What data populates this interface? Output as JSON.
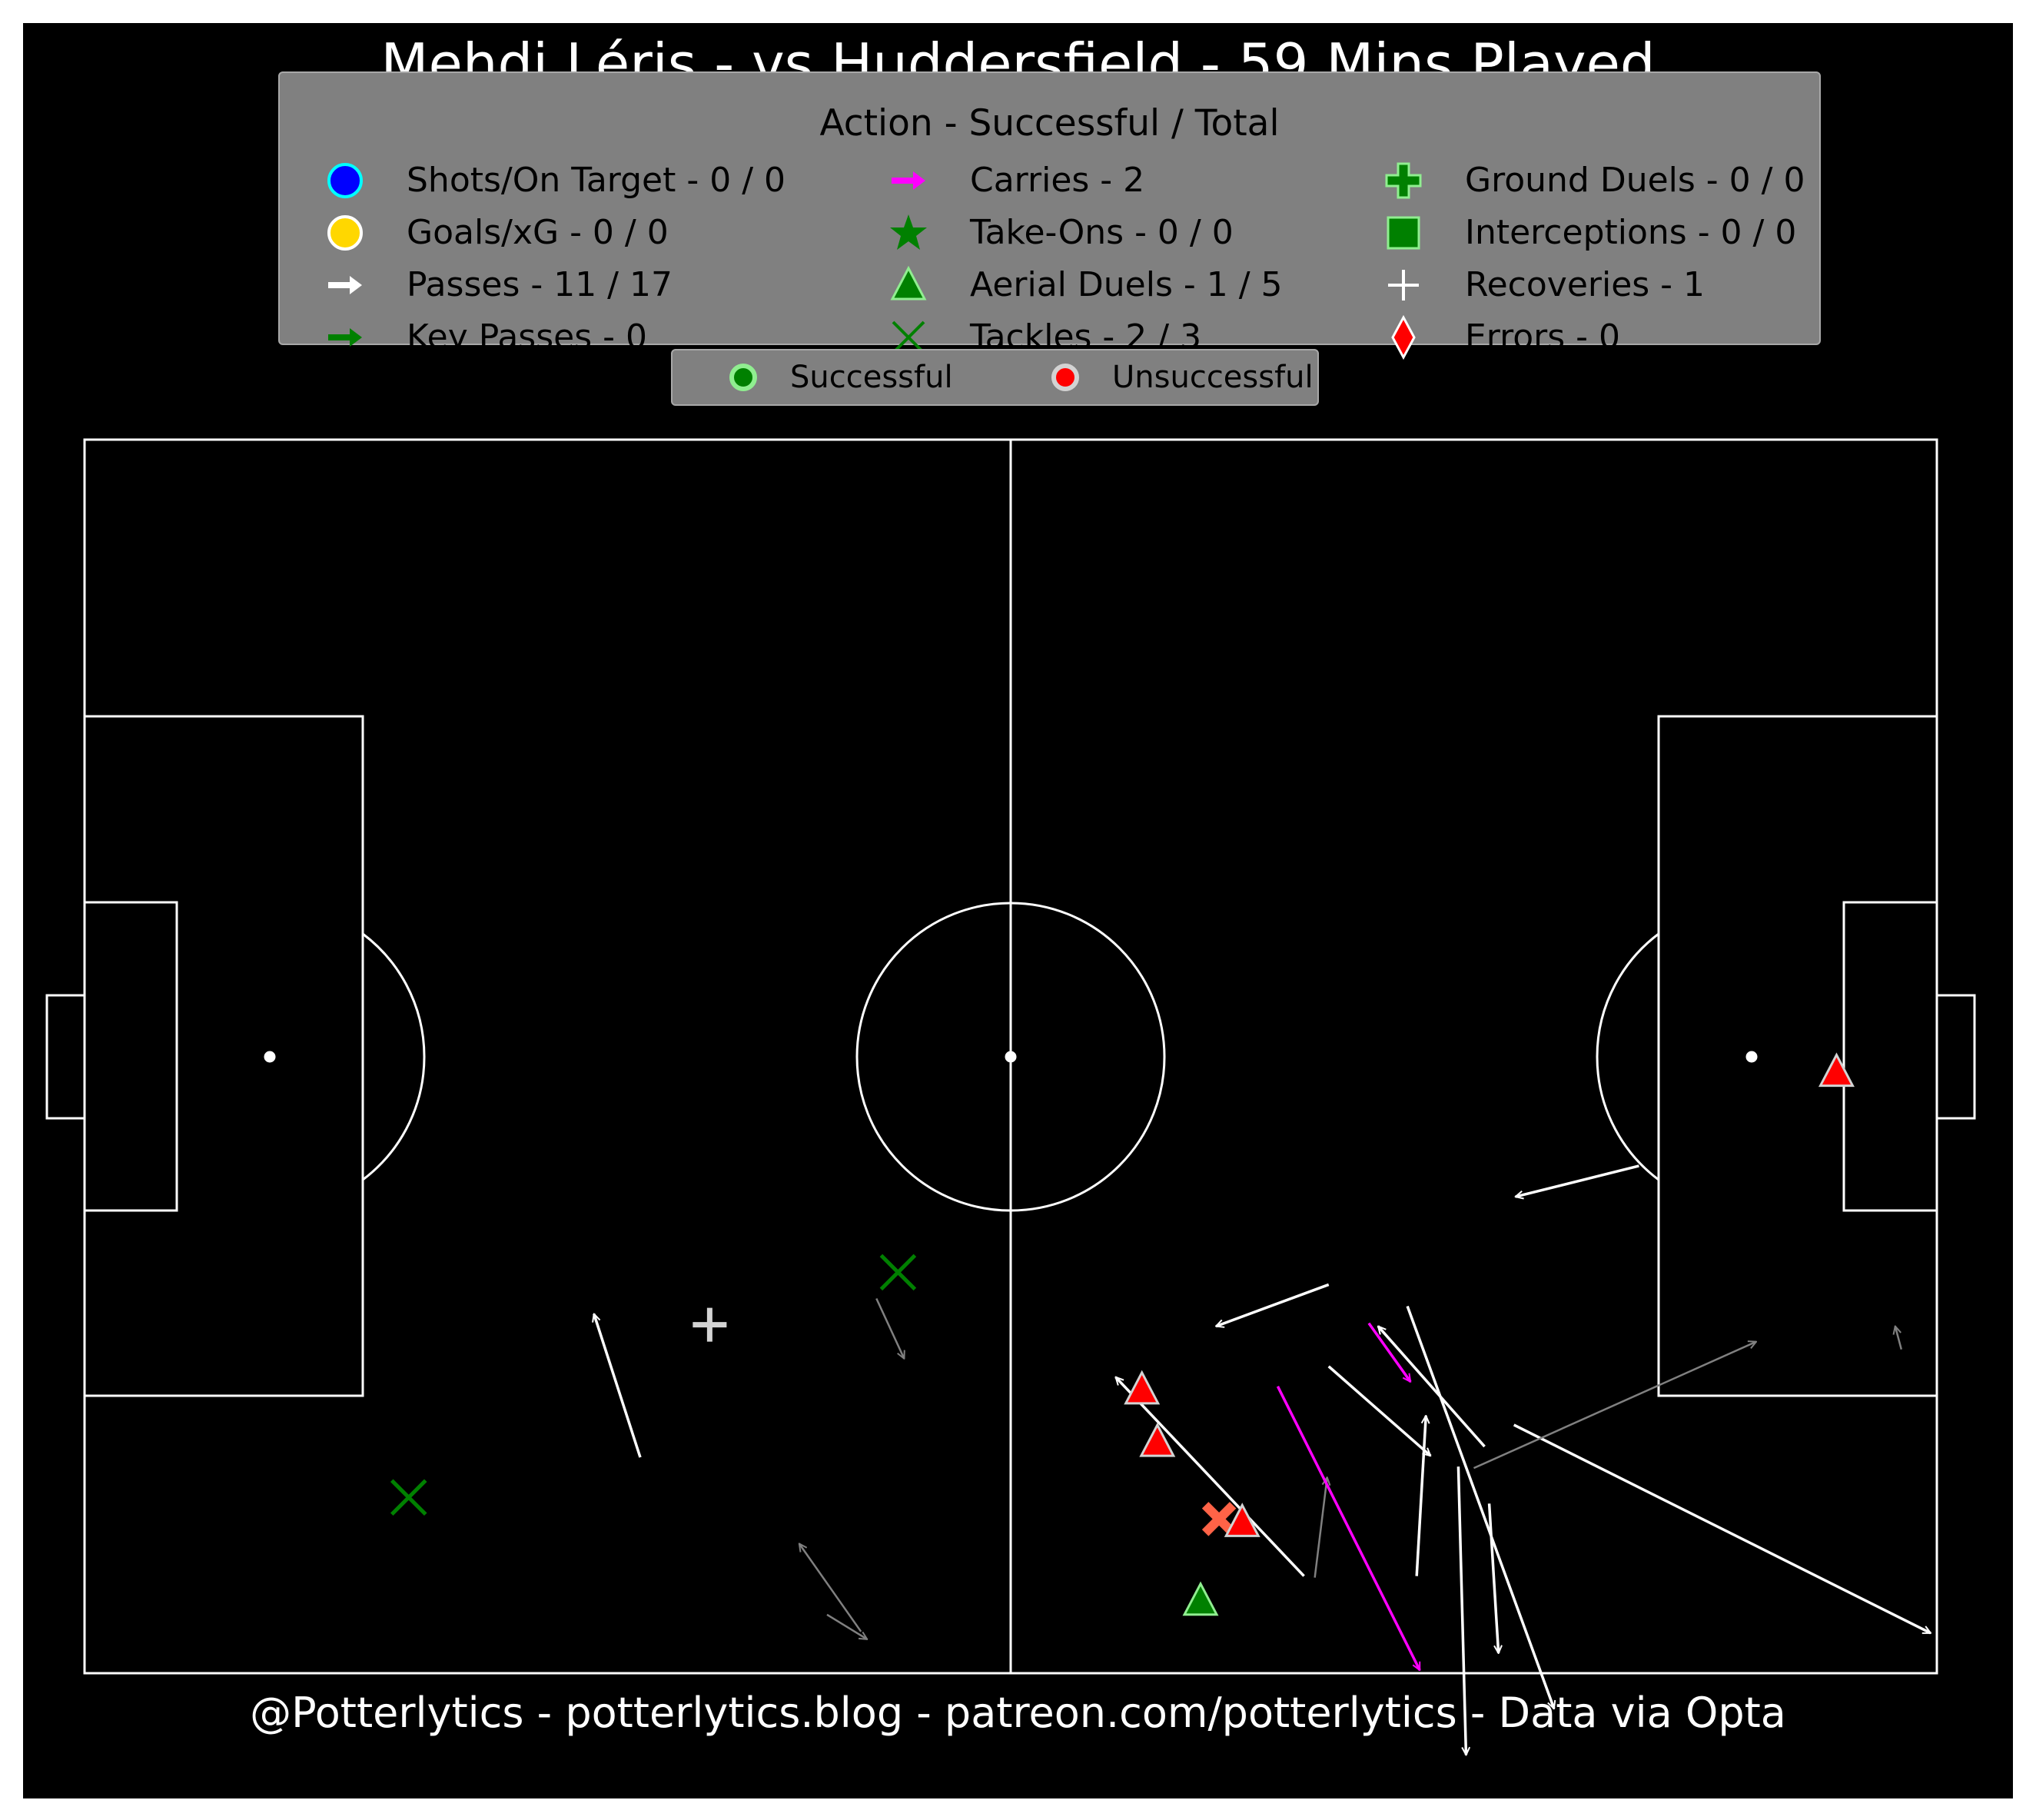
{
  "title": "Mehdi Léris - vs Huddersfield - 59 Mins Played",
  "footer": "@Potterlytics - potterlytics.blog - patreon.com/potterlytics - Data via Opta",
  "legend": {
    "title": "Action - Successful / Total",
    "items": [
      {
        "label": "Shots/On Target - 0 / 0",
        "icon": "circle-icon",
        "color": "#0000ff"
      },
      {
        "label": "Goals/xG - 0 / 0",
        "icon": "circle-icon",
        "color": "#ffd700"
      },
      {
        "label": "Passes - 11 / 17",
        "icon": "arrow-icon",
        "color": "#ffffff"
      },
      {
        "label": "Key Passes - 0",
        "icon": "arrow-icon",
        "color": "#008000"
      },
      {
        "label": "Carries - 2",
        "icon": "arrow-icon",
        "color": "#ff00ff"
      },
      {
        "label": "Take-Ons - 0 / 0",
        "icon": "star-icon",
        "color": "#008000"
      },
      {
        "label": "Aerial Duels - 1 / 5",
        "icon": "triangle-icon",
        "color": "#008000"
      },
      {
        "label": "Tackles - 2 / 3",
        "icon": "x-icon",
        "color": "#008000"
      },
      {
        "label": "Ground Duels - 0 / 0",
        "icon": "plus-icon",
        "color": "#008000"
      },
      {
        "label": "Interceptions - 0 / 0",
        "icon": "square-icon",
        "color": "#008000"
      },
      {
        "label": "Recoveries - 1",
        "icon": "cross-icon",
        "color": "#ffffff"
      },
      {
        "label": "Errors - 0",
        "icon": "diamond-icon",
        "color": "#ff0000"
      }
    ],
    "status": [
      {
        "label": "Successful",
        "color": "#008000"
      },
      {
        "label": "Unsuccessful",
        "color": "#ff0000"
      }
    ]
  },
  "chart_data": {
    "type": "scatter",
    "pitch": {
      "length": 120,
      "width": 80
    },
    "colors": {
      "success": "#008000",
      "fail": "#ff0000",
      "pass": "#ffffff",
      "pass_failed": "#808080",
      "carry": "#ff00ff",
      "recovery": "#d3d3d3",
      "failed_tackle": "#ff6347"
    },
    "passes": [
      {
        "x1": 80.6,
        "y1": 60.1,
        "x2": 87.2,
        "y2": 65.9,
        "outcome": "success"
      },
      {
        "x1": 90.7,
        "y1": 65.3,
        "x2": 83.8,
        "y2": 57.5,
        "outcome": "success"
      },
      {
        "x1": 79.0,
        "y1": 73.7,
        "x2": 66.8,
        "y2": 60.8,
        "outcome": "success"
      },
      {
        "x1": 91.0,
        "y1": 69.0,
        "x2": 91.6,
        "y2": 78.7,
        "outcome": "success"
      },
      {
        "x1": 89.0,
        "y1": 66.6,
        "x2": 89.5,
        "y2": 85.3,
        "outcome": "success"
      },
      {
        "x1": 86.3,
        "y1": 73.7,
        "x2": 86.9,
        "y2": 63.3,
        "outcome": "success"
      },
      {
        "x1": 80.6,
        "y1": 54.8,
        "x2": 73.3,
        "y2": 57.5,
        "outcome": "success"
      },
      {
        "x1": 92.6,
        "y1": 63.9,
        "x2": 119.6,
        "y2": 77.4,
        "outcome": "success"
      },
      {
        "x1": 100.7,
        "y1": 47.1,
        "x2": 92.7,
        "y2": 49.1,
        "outcome": "success"
      },
      {
        "x1": 85.7,
        "y1": 56.2,
        "x2": 95.2,
        "y2": 82.3,
        "outcome": "success"
      },
      {
        "x1": 36.0,
        "y1": 66.0,
        "x2": 33.0,
        "y2": 56.7,
        "outcome": "success"
      },
      {
        "x1": 90.0,
        "y1": 66.7,
        "x2": 108.3,
        "y2": 58.5,
        "outcome": "fail"
      },
      {
        "x1": 117.7,
        "y1": 59.0,
        "x2": 117.3,
        "y2": 57.5,
        "outcome": "fail"
      },
      {
        "x1": 79.7,
        "y1": 73.8,
        "x2": 80.5,
        "y2": 67.3,
        "outcome": "fail"
      },
      {
        "x1": 50.3,
        "y1": 77.3,
        "x2": 46.3,
        "y2": 71.6,
        "outcome": "fail"
      },
      {
        "x1": 48.1,
        "y1": 76.2,
        "x2": 50.7,
        "y2": 77.8,
        "outcome": "fail"
      },
      {
        "x1": 51.3,
        "y1": 55.7,
        "x2": 53.1,
        "y2": 59.6,
        "outcome": "fail"
      }
    ],
    "carries": [
      {
        "x1": 83.2,
        "y1": 57.3,
        "x2": 85.9,
        "y2": 61.1
      },
      {
        "x1": 77.3,
        "y1": 61.4,
        "x2": 86.5,
        "y2": 79.8
      }
    ],
    "aerial_duels": [
      {
        "x": 68.5,
        "y": 61.6,
        "outcome": "fail"
      },
      {
        "x": 69.5,
        "y": 65.0,
        "outcome": "fail"
      },
      {
        "x": 75.0,
        "y": 70.2,
        "outcome": "fail"
      },
      {
        "x": 113.5,
        "y": 41.0,
        "outcome": "fail"
      },
      {
        "x": 72.3,
        "y": 75.3,
        "outcome": "success"
      }
    ],
    "tackles": [
      {
        "x": 52.7,
        "y": 54.0,
        "outcome": "success"
      },
      {
        "x": 21.0,
        "y": 68.6,
        "outcome": "success"
      },
      {
        "x": 73.5,
        "y": 70.0,
        "outcome": "fail"
      }
    ],
    "recoveries": [
      {
        "x": 40.5,
        "y": 57.4
      }
    ]
  }
}
